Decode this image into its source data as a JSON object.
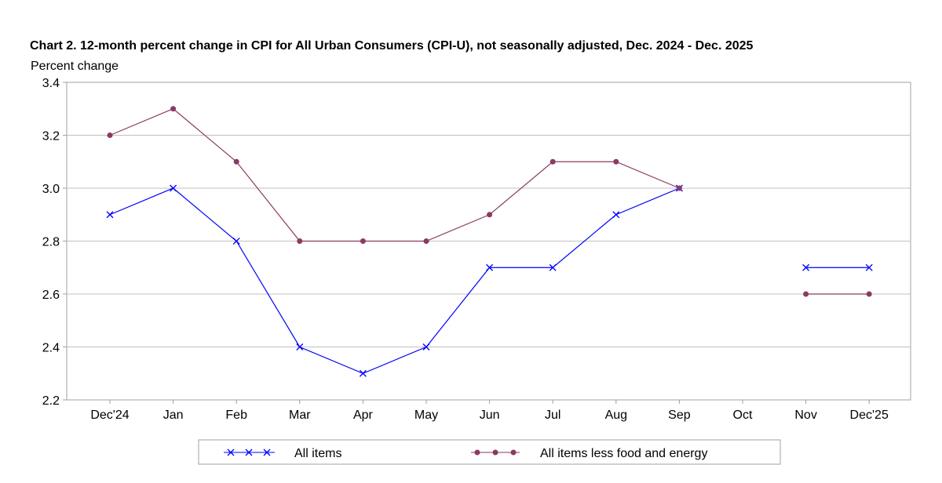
{
  "chart_data": {
    "type": "line",
    "title": "Chart 2. 12-month percent change in CPI for All Urban Consumers (CPI-U), not seasonally adjusted, Dec. 2024 - Dec. 2025",
    "ylabel": "Percent change",
    "xlabel": "",
    "categories": [
      "Dec'24",
      "Jan",
      "Feb",
      "Mar",
      "Apr",
      "May",
      "Jun",
      "Jul",
      "Aug",
      "Sep",
      "Oct",
      "Nov",
      "Dec'25"
    ],
    "ylim": [
      2.2,
      3.4
    ],
    "yticks": [
      2.2,
      2.4,
      2.6,
      2.8,
      3.0,
      3.2,
      3.4
    ],
    "yticks_labels": [
      "2.2",
      "2.4",
      "2.6",
      "2.8",
      "3.0",
      "3.2",
      "3.4"
    ],
    "grid": true,
    "legend_position": "bottom",
    "series": [
      {
        "name": "All items",
        "color": "#0000ff",
        "marker": "x",
        "values": [
          2.9,
          3.0,
          2.8,
          2.4,
          2.3,
          2.4,
          2.7,
          2.7,
          2.9,
          3.0,
          null,
          2.7,
          2.7
        ]
      },
      {
        "name": "All items less food and energy",
        "color": "#8b3a62",
        "marker": "circle",
        "values": [
          3.2,
          3.3,
          3.1,
          2.8,
          2.8,
          2.8,
          2.9,
          3.1,
          3.1,
          3.0,
          null,
          2.6,
          2.6
        ]
      }
    ]
  }
}
